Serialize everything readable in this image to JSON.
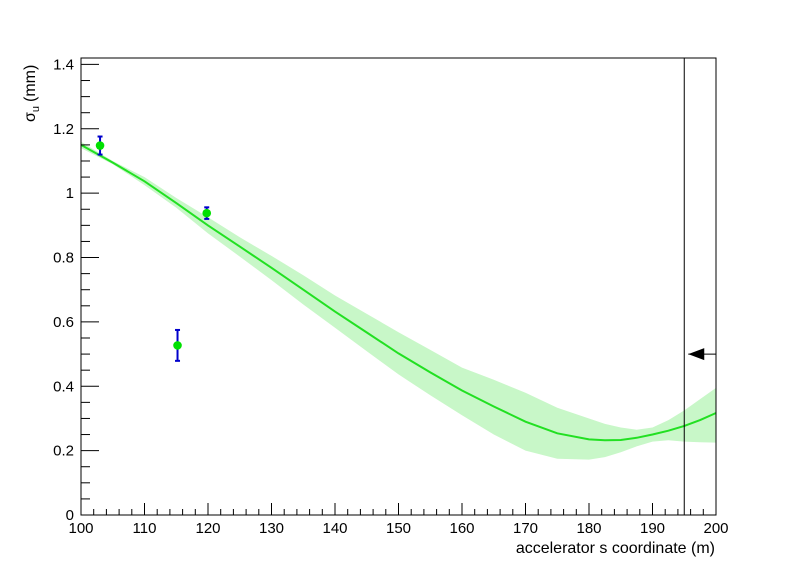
{
  "chart_data": {
    "type": "scatter",
    "xlabel": "accelerator s coordinate (m)",
    "ylabel": {
      "main": "σ",
      "sub": "u",
      "unit": "(mm)"
    },
    "xlim": [
      100,
      200
    ],
    "ylim": [
      0,
      1.42
    ],
    "x_ticks": [
      100,
      110,
      120,
      130,
      140,
      150,
      160,
      170,
      180,
      190,
      200
    ],
    "x_tick_labels": [
      "100",
      "110",
      "120",
      "130",
      "140",
      "150",
      "160",
      "170",
      "180",
      "190",
      "200"
    ],
    "y_ticks": [
      0,
      0.2,
      0.4,
      0.6,
      0.8,
      1,
      1.2,
      1.4
    ],
    "y_tick_labels": [
      "0",
      "0.2",
      "0.4",
      "0.6",
      "0.8",
      "1",
      "1.2",
      "1.4"
    ],
    "grid": false,
    "colors": {
      "fit_line": "#22e022",
      "band": "#c8f7c8",
      "marker": "#00e000",
      "errorbar": "#0000cc",
      "frame": "#000000"
    },
    "measurements": [
      {
        "x": 103.0,
        "y": 1.148,
        "yerr": 0.028
      },
      {
        "x": 115.2,
        "y": 0.527,
        "yerr": 0.048
      },
      {
        "x": 119.8,
        "y": 0.938,
        "yerr": 0.018
      }
    ],
    "fit": {
      "x": [
        100,
        105,
        110,
        115,
        120,
        125,
        130,
        135,
        140,
        145,
        150,
        155,
        160,
        165,
        170,
        175,
        180,
        182.5,
        185,
        187.5,
        190,
        192.5,
        195,
        197.5,
        200
      ],
      "y": [
        1.15,
        1.095,
        1.037,
        0.969,
        0.9,
        0.834,
        0.768,
        0.7,
        0.632,
        0.567,
        0.502,
        0.443,
        0.387,
        0.337,
        0.29,
        0.254,
        0.235,
        0.232,
        0.233,
        0.24,
        0.25,
        0.262,
        0.277,
        0.295,
        0.317
      ],
      "low": [
        1.14,
        1.09,
        1.025,
        0.955,
        0.875,
        0.803,
        0.73,
        0.654,
        0.582,
        0.509,
        0.437,
        0.372,
        0.31,
        0.25,
        0.2,
        0.175,
        0.172,
        0.18,
        0.195,
        0.213,
        0.228,
        0.232,
        0.228,
        0.226,
        0.225
      ],
      "high": [
        1.16,
        1.1,
        1.05,
        0.985,
        0.925,
        0.863,
        0.805,
        0.745,
        0.682,
        0.625,
        0.568,
        0.513,
        0.458,
        0.42,
        0.38,
        0.333,
        0.3,
        0.283,
        0.272,
        0.265,
        0.272,
        0.295,
        0.325,
        0.36,
        0.395
      ]
    },
    "vertical_marker": {
      "x": 195
    },
    "arrow_marker": {
      "y": 0.5,
      "direction": "left"
    }
  }
}
